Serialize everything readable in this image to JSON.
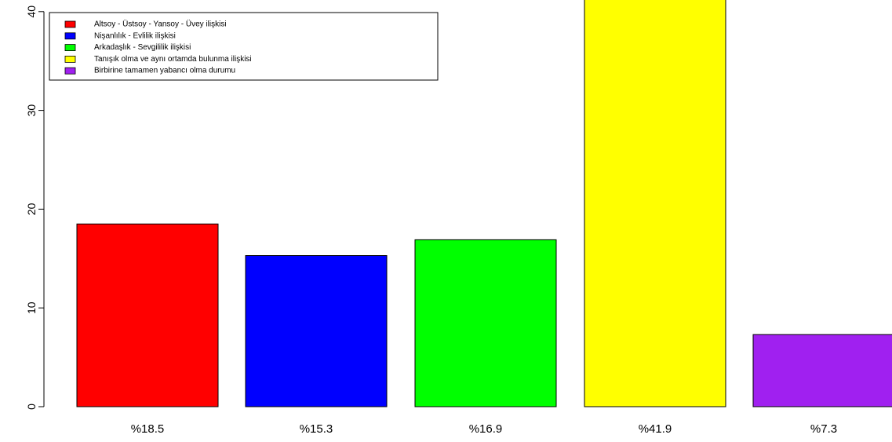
{
  "chart_data": {
    "type": "bar",
    "title": "",
    "xlabel": "",
    "ylabel": "",
    "categories": [
      "%18.5",
      "%15.3",
      "%16.9",
      "%41.9",
      "%7.3"
    ],
    "values": [
      18.5,
      15.3,
      16.9,
      41.9,
      7.3
    ],
    "colors": [
      "#ff0000",
      "#0000ff",
      "#00ff00",
      "#ffff00",
      "#a020f0"
    ],
    "ylim": [
      0,
      40
    ],
    "yticks": [
      "0",
      "10",
      "20",
      "30",
      "40"
    ],
    "ytick_values": [
      0,
      10,
      20,
      30,
      40
    ],
    "grid": false,
    "legend": {
      "position": "top-left",
      "entries": [
        {
          "label": "Altsoy - Üstsoy - Yansoy - Üvey ilişkisi",
          "color": "#ff0000"
        },
        {
          "label": "Nişanlılık - Evlilik ilişkisi",
          "color": "#0000ff"
        },
        {
          "label": "Arkadaşlık - Sevgililik ilişkisi",
          "color": "#00ff00"
        },
        {
          "label": "Tanışık olma ve aynı ortamda bulunma ilişkisi",
          "color": "#ffff00"
        },
        {
          "label": "Birbirine tamamen yabancı olma durumu",
          "color": "#a020f0"
        }
      ]
    }
  }
}
